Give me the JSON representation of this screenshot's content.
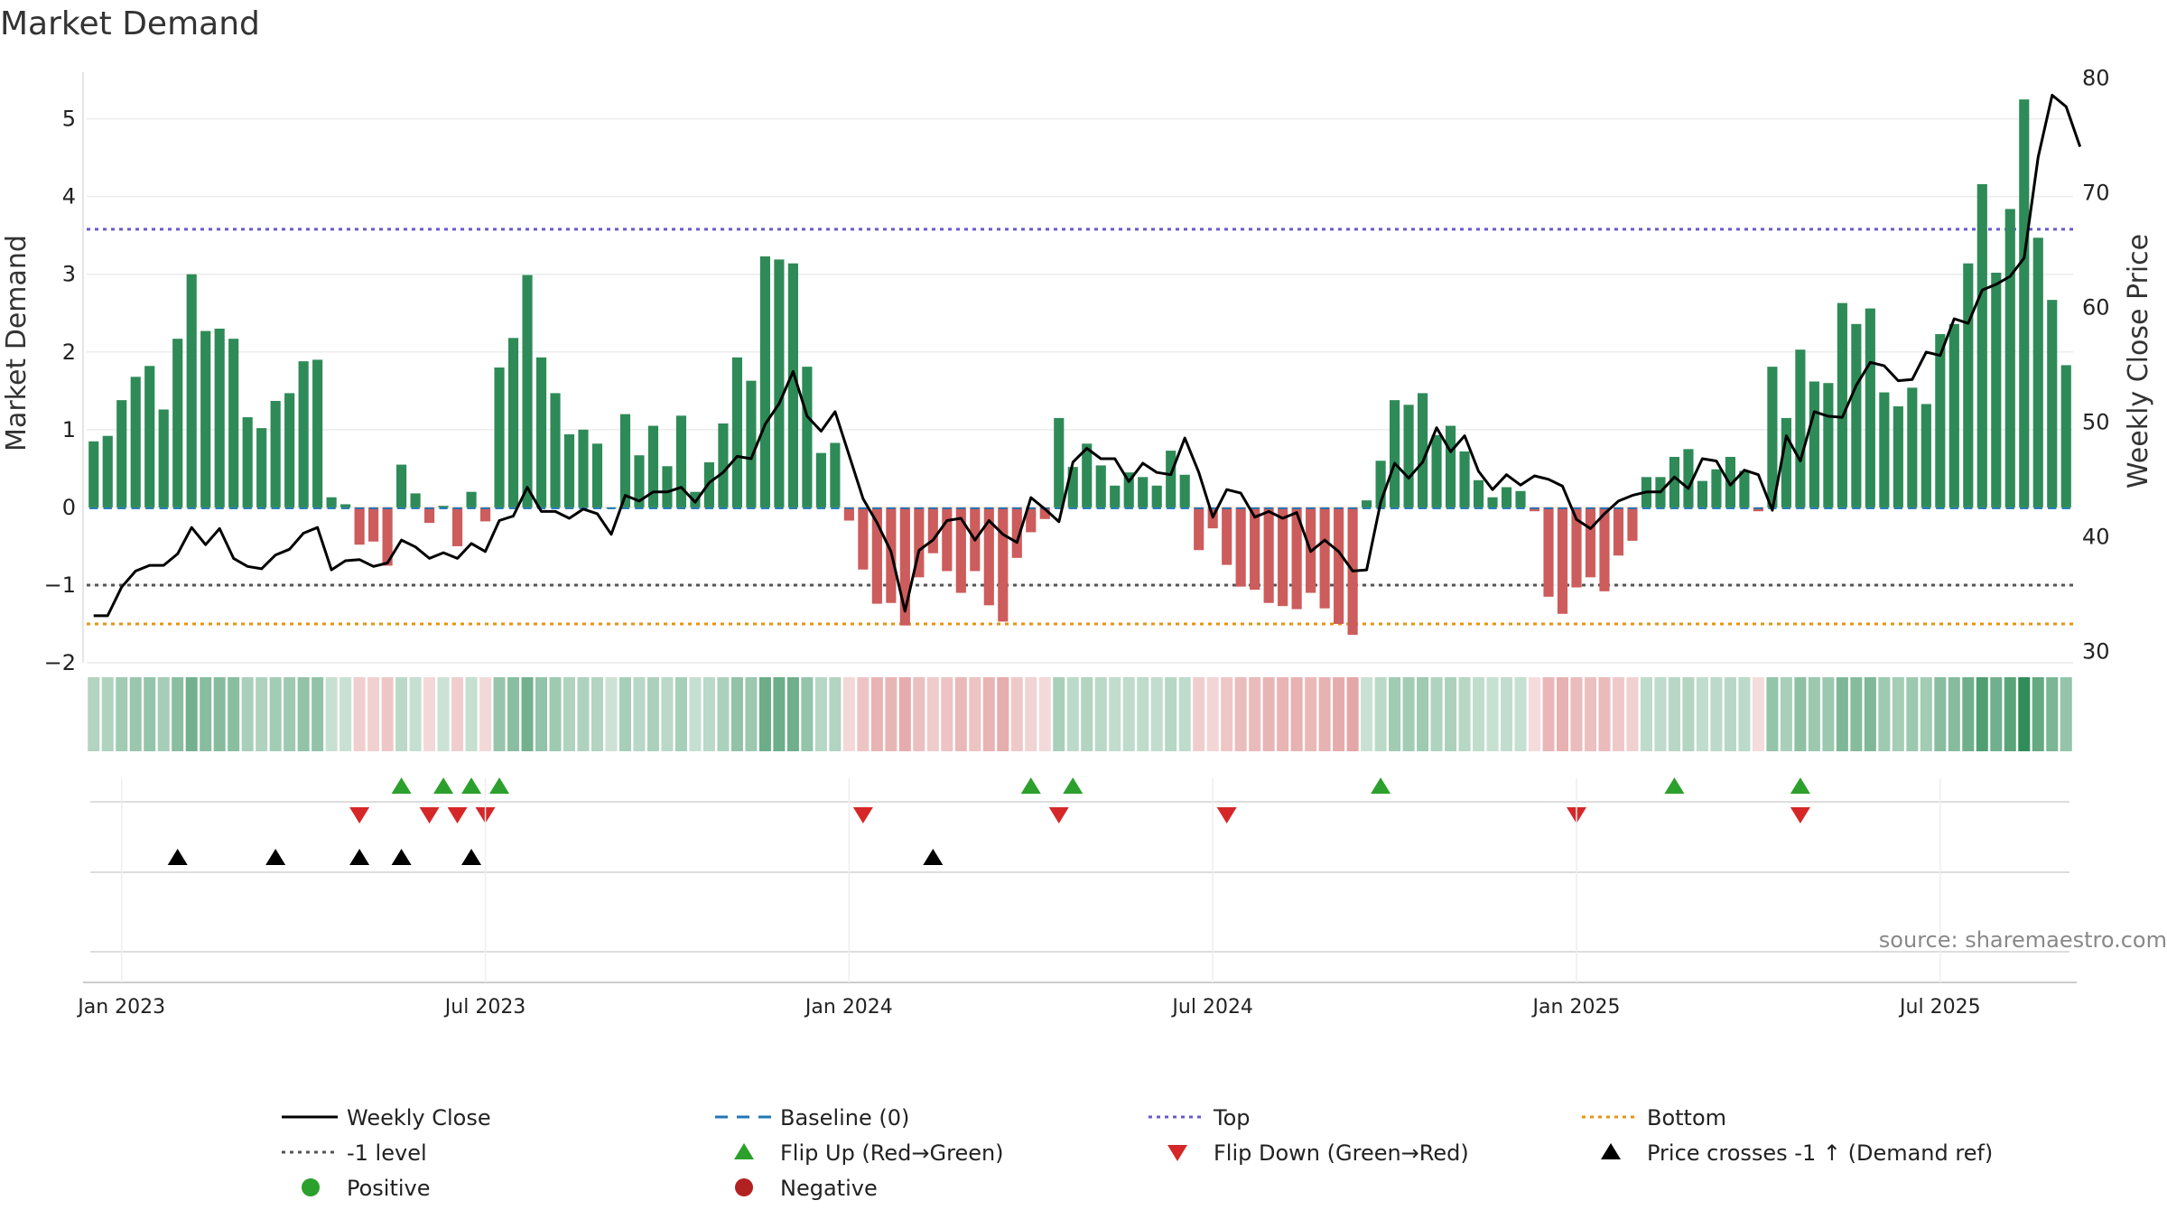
{
  "chart_data": {
    "type": "bar",
    "title": "Market Demand",
    "ylabel_left": "Market Demand",
    "ylabel_right": "Weekly Close Price",
    "ylim_left": [
      -2,
      5.6
    ],
    "ylim_right": [
      29,
      80.5
    ],
    "yticks_left": [
      -2,
      -1,
      0,
      1,
      2,
      3,
      4,
      5
    ],
    "yticks_left_labels": [
      "−2",
      "−1",
      "0",
      "1",
      "2",
      "3",
      "4",
      "5"
    ],
    "yticks_right": [
      30,
      40,
      50,
      60,
      70,
      80
    ],
    "yticks_right_labels": [
      "30",
      "40",
      "50",
      "60",
      "70",
      "80"
    ],
    "x_start": "2022-12-19",
    "x_interval_days": 7,
    "x_ticks": [
      {
        "label": "Jan 2023",
        "date": "2023-01-02"
      },
      {
        "label": "Jul 2023",
        "date": "2023-07-03"
      },
      {
        "label": "Jan 2024",
        "date": "2024-01-01"
      },
      {
        "label": "Jul 2024",
        "date": "2024-07-01"
      },
      {
        "label": "Jan 2025",
        "date": "2024-12-30"
      },
      {
        "label": "Jul 2025",
        "date": "2025-06-30"
      }
    ],
    "demand": [
      0.85,
      0.92,
      1.38,
      1.68,
      1.82,
      1.26,
      2.17,
      3.0,
      2.27,
      2.3,
      2.17,
      1.16,
      1.02,
      1.37,
      1.47,
      1.88,
      1.9,
      0.13,
      0.04,
      -0.48,
      -0.44,
      -0.75,
      0.55,
      0.18,
      -0.2,
      0.02,
      -0.5,
      0.2,
      -0.18,
      1.8,
      2.18,
      2.99,
      1.93,
      1.47,
      0.94,
      1.0,
      0.82,
      0.0,
      1.2,
      0.67,
      1.05,
      0.53,
      1.18,
      0.2,
      0.58,
      1.08,
      1.93,
      1.63,
      3.23,
      3.19,
      3.14,
      1.81,
      0.7,
      0.83,
      -0.17,
      -0.8,
      -1.24,
      -1.23,
      -1.52,
      -0.9,
      -0.59,
      -0.82,
      -1.1,
      -0.82,
      -1.26,
      -1.47,
      -0.65,
      -0.32,
      -0.15,
      1.15,
      0.52,
      0.82,
      0.54,
      0.28,
      0.45,
      0.39,
      0.28,
      0.73,
      0.42,
      -0.55,
      -0.27,
      -0.74,
      -1.02,
      -1.06,
      -1.23,
      -1.27,
      -1.31,
      -1.1,
      -1.3,
      -1.5,
      -1.64,
      0.09,
      0.6,
      1.38,
      1.32,
      1.47,
      0.93,
      1.05,
      0.72,
      0.35,
      0.13,
      0.26,
      0.21,
      -0.05,
      -1.15,
      -1.37,
      -1.03,
      -0.9,
      -1.08,
      -0.62,
      -0.43,
      0.39,
      0.39,
      0.65,
      0.75,
      0.34,
      0.49,
      0.65,
      0.47,
      -0.05,
      1.81,
      1.15,
      2.03,
      1.62,
      1.6,
      2.63,
      2.36,
      2.56,
      1.48,
      1.3,
      1.54,
      1.33,
      2.23,
      2.36,
      3.14,
      4.16,
      3.02,
      3.84,
      5.25,
      3.47,
      2.67,
      1.83
    ],
    "price": [
      33.1,
      33.1,
      35.6,
      37.0,
      37.5,
      37.5,
      38.5,
      40.8,
      39.3,
      40.7,
      38.1,
      37.4,
      37.2,
      38.4,
      38.9,
      40.3,
      40.8,
      37.1,
      37.9,
      38.0,
      37.4,
      37.7,
      39.7,
      39.1,
      38.1,
      38.6,
      38.1,
      39.4,
      38.7,
      41.4,
      41.8,
      44.3,
      42.2,
      42.2,
      41.6,
      42.4,
      42.0,
      40.2,
      43.6,
      43.1,
      43.9,
      43.9,
      44.3,
      43.0,
      44.7,
      45.6,
      47.0,
      46.8,
      49.8,
      51.6,
      54.4,
      50.5,
      49.2,
      50.9,
      47.1,
      43.3,
      41.2,
      38.7,
      33.5,
      38.8,
      39.7,
      41.4,
      41.6,
      39.7,
      41.4,
      40.2,
      39.5,
      43.4,
      42.4,
      41.3,
      46.5,
      47.7,
      46.8,
      46.8,
      44.8,
      46.4,
      45.6,
      45.4,
      48.6,
      45.6,
      41.7,
      44.1,
      43.8,
      41.7,
      42.2,
      41.6,
      42.1,
      38.7,
      39.7,
      38.7,
      37.0,
      37.1,
      43.0,
      46.4,
      45.1,
      46.5,
      49.5,
      47.4,
      48.8,
      45.7,
      44.1,
      45.4,
      44.5,
      45.3,
      45.0,
      44.4,
      41.5,
      40.7,
      42.0,
      43.1,
      43.6,
      43.9,
      43.9,
      45.2,
      44.2,
      46.8,
      46.6,
      44.5,
      45.8,
      45.4,
      42.3,
      48.8,
      46.6,
      50.9,
      50.5,
      50.4,
      53.2,
      55.2,
      54.9,
      53.6,
      53.7,
      56.1,
      55.8,
      59.0,
      58.6,
      61.5,
      62.0,
      62.7,
      64.3,
      73.1,
      78.5,
      77.5,
      74.0
    ]
  },
  "levels": {
    "top": 3.58,
    "bottom": -1.5,
    "minus_one": -1
  },
  "markers": {
    "flip_up": [
      22,
      25,
      27,
      29,
      67,
      70,
      92,
      113,
      122
    ],
    "flip_down": [
      19,
      24,
      26,
      28,
      55,
      69,
      81,
      106,
      122
    ],
    "price_cross": [
      6,
      13,
      19,
      22,
      27,
      60
    ]
  },
  "colors": {
    "positive": "#2e8b57",
    "negative": "#cd5c5c",
    "price_line": "#000000",
    "baseline": "#1f77b4",
    "top": "#6a5acd",
    "bottom": "#e69512",
    "minus_one": "#555555",
    "flip_up": "#2ca02c",
    "flip_down": "#d62728",
    "price_cross": "#000000",
    "positive_dot": "#2ca02c",
    "negative_dot": "#b22222"
  },
  "legend": [
    {
      "label": "Weekly Close",
      "kind": "solid"
    },
    {
      "label": "Baseline (0)",
      "kind": "dashed-blue"
    },
    {
      "label": "Top",
      "kind": "dotted-purple"
    },
    {
      "label": "Bottom",
      "kind": "dotted-orange"
    },
    {
      "label": "-1 level",
      "kind": "dotted-gray"
    },
    {
      "label": "Flip Up (Red→Green)",
      "kind": "tri-up-green"
    },
    {
      "label": "Flip Down (Green→Red)",
      "kind": "tri-down-red"
    },
    {
      "label": "Price crosses -1 ↑ (Demand ref)",
      "kind": "tri-up-black"
    },
    {
      "label": "Positive",
      "kind": "dot-green"
    },
    {
      "label": "Negative",
      "kind": "dot-red"
    }
  ],
  "source": "source: sharemaestro.com"
}
